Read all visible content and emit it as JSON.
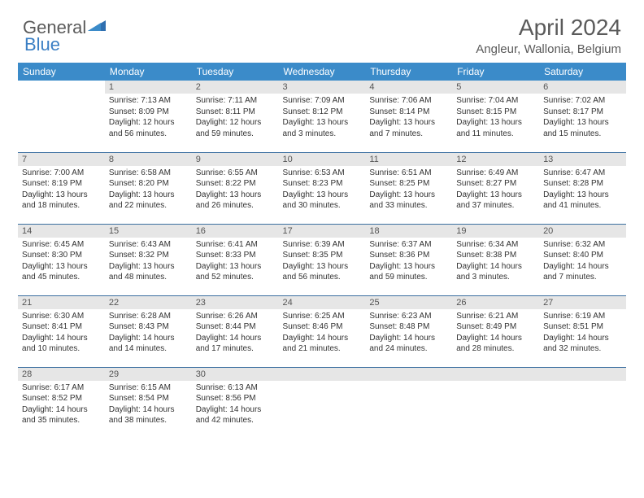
{
  "brand": {
    "part1": "General",
    "part2": "Blue"
  },
  "title": "April 2024",
  "location": "Angleur, Wallonia, Belgium",
  "colors": {
    "header_bg": "#3b8bc9",
    "header_text": "#ffffff",
    "daynum_bg": "#e6e6e6",
    "border": "#3b6fa0",
    "logo_gray": "#5a5a5a",
    "logo_blue": "#3b7fc4"
  },
  "dow": [
    "Sunday",
    "Monday",
    "Tuesday",
    "Wednesday",
    "Thursday",
    "Friday",
    "Saturday"
  ],
  "weeks": [
    [
      {
        "n": "",
        "l1": "",
        "l2": "",
        "l3": "",
        "l4": ""
      },
      {
        "n": "1",
        "l1": "Sunrise: 7:13 AM",
        "l2": "Sunset: 8:09 PM",
        "l3": "Daylight: 12 hours",
        "l4": "and 56 minutes."
      },
      {
        "n": "2",
        "l1": "Sunrise: 7:11 AM",
        "l2": "Sunset: 8:11 PM",
        "l3": "Daylight: 12 hours",
        "l4": "and 59 minutes."
      },
      {
        "n": "3",
        "l1": "Sunrise: 7:09 AM",
        "l2": "Sunset: 8:12 PM",
        "l3": "Daylight: 13 hours",
        "l4": "and 3 minutes."
      },
      {
        "n": "4",
        "l1": "Sunrise: 7:06 AM",
        "l2": "Sunset: 8:14 PM",
        "l3": "Daylight: 13 hours",
        "l4": "and 7 minutes."
      },
      {
        "n": "5",
        "l1": "Sunrise: 7:04 AM",
        "l2": "Sunset: 8:15 PM",
        "l3": "Daylight: 13 hours",
        "l4": "and 11 minutes."
      },
      {
        "n": "6",
        "l1": "Sunrise: 7:02 AM",
        "l2": "Sunset: 8:17 PM",
        "l3": "Daylight: 13 hours",
        "l4": "and 15 minutes."
      }
    ],
    [
      {
        "n": "7",
        "l1": "Sunrise: 7:00 AM",
        "l2": "Sunset: 8:19 PM",
        "l3": "Daylight: 13 hours",
        "l4": "and 18 minutes."
      },
      {
        "n": "8",
        "l1": "Sunrise: 6:58 AM",
        "l2": "Sunset: 8:20 PM",
        "l3": "Daylight: 13 hours",
        "l4": "and 22 minutes."
      },
      {
        "n": "9",
        "l1": "Sunrise: 6:55 AM",
        "l2": "Sunset: 8:22 PM",
        "l3": "Daylight: 13 hours",
        "l4": "and 26 minutes."
      },
      {
        "n": "10",
        "l1": "Sunrise: 6:53 AM",
        "l2": "Sunset: 8:23 PM",
        "l3": "Daylight: 13 hours",
        "l4": "and 30 minutes."
      },
      {
        "n": "11",
        "l1": "Sunrise: 6:51 AM",
        "l2": "Sunset: 8:25 PM",
        "l3": "Daylight: 13 hours",
        "l4": "and 33 minutes."
      },
      {
        "n": "12",
        "l1": "Sunrise: 6:49 AM",
        "l2": "Sunset: 8:27 PM",
        "l3": "Daylight: 13 hours",
        "l4": "and 37 minutes."
      },
      {
        "n": "13",
        "l1": "Sunrise: 6:47 AM",
        "l2": "Sunset: 8:28 PM",
        "l3": "Daylight: 13 hours",
        "l4": "and 41 minutes."
      }
    ],
    [
      {
        "n": "14",
        "l1": "Sunrise: 6:45 AM",
        "l2": "Sunset: 8:30 PM",
        "l3": "Daylight: 13 hours",
        "l4": "and 45 minutes."
      },
      {
        "n": "15",
        "l1": "Sunrise: 6:43 AM",
        "l2": "Sunset: 8:32 PM",
        "l3": "Daylight: 13 hours",
        "l4": "and 48 minutes."
      },
      {
        "n": "16",
        "l1": "Sunrise: 6:41 AM",
        "l2": "Sunset: 8:33 PM",
        "l3": "Daylight: 13 hours",
        "l4": "and 52 minutes."
      },
      {
        "n": "17",
        "l1": "Sunrise: 6:39 AM",
        "l2": "Sunset: 8:35 PM",
        "l3": "Daylight: 13 hours",
        "l4": "and 56 minutes."
      },
      {
        "n": "18",
        "l1": "Sunrise: 6:37 AM",
        "l2": "Sunset: 8:36 PM",
        "l3": "Daylight: 13 hours",
        "l4": "and 59 minutes."
      },
      {
        "n": "19",
        "l1": "Sunrise: 6:34 AM",
        "l2": "Sunset: 8:38 PM",
        "l3": "Daylight: 14 hours",
        "l4": "and 3 minutes."
      },
      {
        "n": "20",
        "l1": "Sunrise: 6:32 AM",
        "l2": "Sunset: 8:40 PM",
        "l3": "Daylight: 14 hours",
        "l4": "and 7 minutes."
      }
    ],
    [
      {
        "n": "21",
        "l1": "Sunrise: 6:30 AM",
        "l2": "Sunset: 8:41 PM",
        "l3": "Daylight: 14 hours",
        "l4": "and 10 minutes."
      },
      {
        "n": "22",
        "l1": "Sunrise: 6:28 AM",
        "l2": "Sunset: 8:43 PM",
        "l3": "Daylight: 14 hours",
        "l4": "and 14 minutes."
      },
      {
        "n": "23",
        "l1": "Sunrise: 6:26 AM",
        "l2": "Sunset: 8:44 PM",
        "l3": "Daylight: 14 hours",
        "l4": "and 17 minutes."
      },
      {
        "n": "24",
        "l1": "Sunrise: 6:25 AM",
        "l2": "Sunset: 8:46 PM",
        "l3": "Daylight: 14 hours",
        "l4": "and 21 minutes."
      },
      {
        "n": "25",
        "l1": "Sunrise: 6:23 AM",
        "l2": "Sunset: 8:48 PM",
        "l3": "Daylight: 14 hours",
        "l4": "and 24 minutes."
      },
      {
        "n": "26",
        "l1": "Sunrise: 6:21 AM",
        "l2": "Sunset: 8:49 PM",
        "l3": "Daylight: 14 hours",
        "l4": "and 28 minutes."
      },
      {
        "n": "27",
        "l1": "Sunrise: 6:19 AM",
        "l2": "Sunset: 8:51 PM",
        "l3": "Daylight: 14 hours",
        "l4": "and 32 minutes."
      }
    ],
    [
      {
        "n": "28",
        "l1": "Sunrise: 6:17 AM",
        "l2": "Sunset: 8:52 PM",
        "l3": "Daylight: 14 hours",
        "l4": "and 35 minutes."
      },
      {
        "n": "29",
        "l1": "Sunrise: 6:15 AM",
        "l2": "Sunset: 8:54 PM",
        "l3": "Daylight: 14 hours",
        "l4": "and 38 minutes."
      },
      {
        "n": "30",
        "l1": "Sunrise: 6:13 AM",
        "l2": "Sunset: 8:56 PM",
        "l3": "Daylight: 14 hours",
        "l4": "and 42 minutes."
      },
      {
        "n": "",
        "l1": "",
        "l2": "",
        "l3": "",
        "l4": "",
        "trailing": true
      },
      {
        "n": "",
        "l1": "",
        "l2": "",
        "l3": "",
        "l4": "",
        "trailing": true
      },
      {
        "n": "",
        "l1": "",
        "l2": "",
        "l3": "",
        "l4": "",
        "trailing": true
      },
      {
        "n": "",
        "l1": "",
        "l2": "",
        "l3": "",
        "l4": "",
        "trailing": true
      }
    ]
  ]
}
